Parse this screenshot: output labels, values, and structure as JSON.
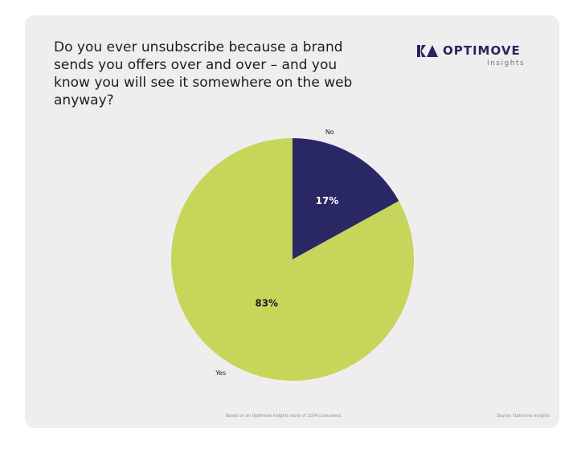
{
  "title": "Do you ever unsubscribe because a brand sends you offers over and over – and you know you will see it somewhere on the web anyway?",
  "logo": {
    "name": "OPTIMOVE",
    "subtitle": "Insights"
  },
  "footer": {
    "note": "Based on an Optimove Insights study of 1034 consumers.",
    "source": "Source: Optimove Insights"
  },
  "colors": {
    "card": "#efeeee",
    "yes": "#c7d55a",
    "no": "#2a2864",
    "text": "#1c1c28"
  },
  "chart_data": {
    "type": "pie",
    "labels": [
      "No",
      "Yes"
    ],
    "values": [
      17,
      83
    ],
    "value_labels": [
      "17%",
      "83%"
    ],
    "colors": [
      "#2a2864",
      "#c7d55a"
    ],
    "start_angle": "12 o'clock",
    "direction": "clockwise"
  }
}
